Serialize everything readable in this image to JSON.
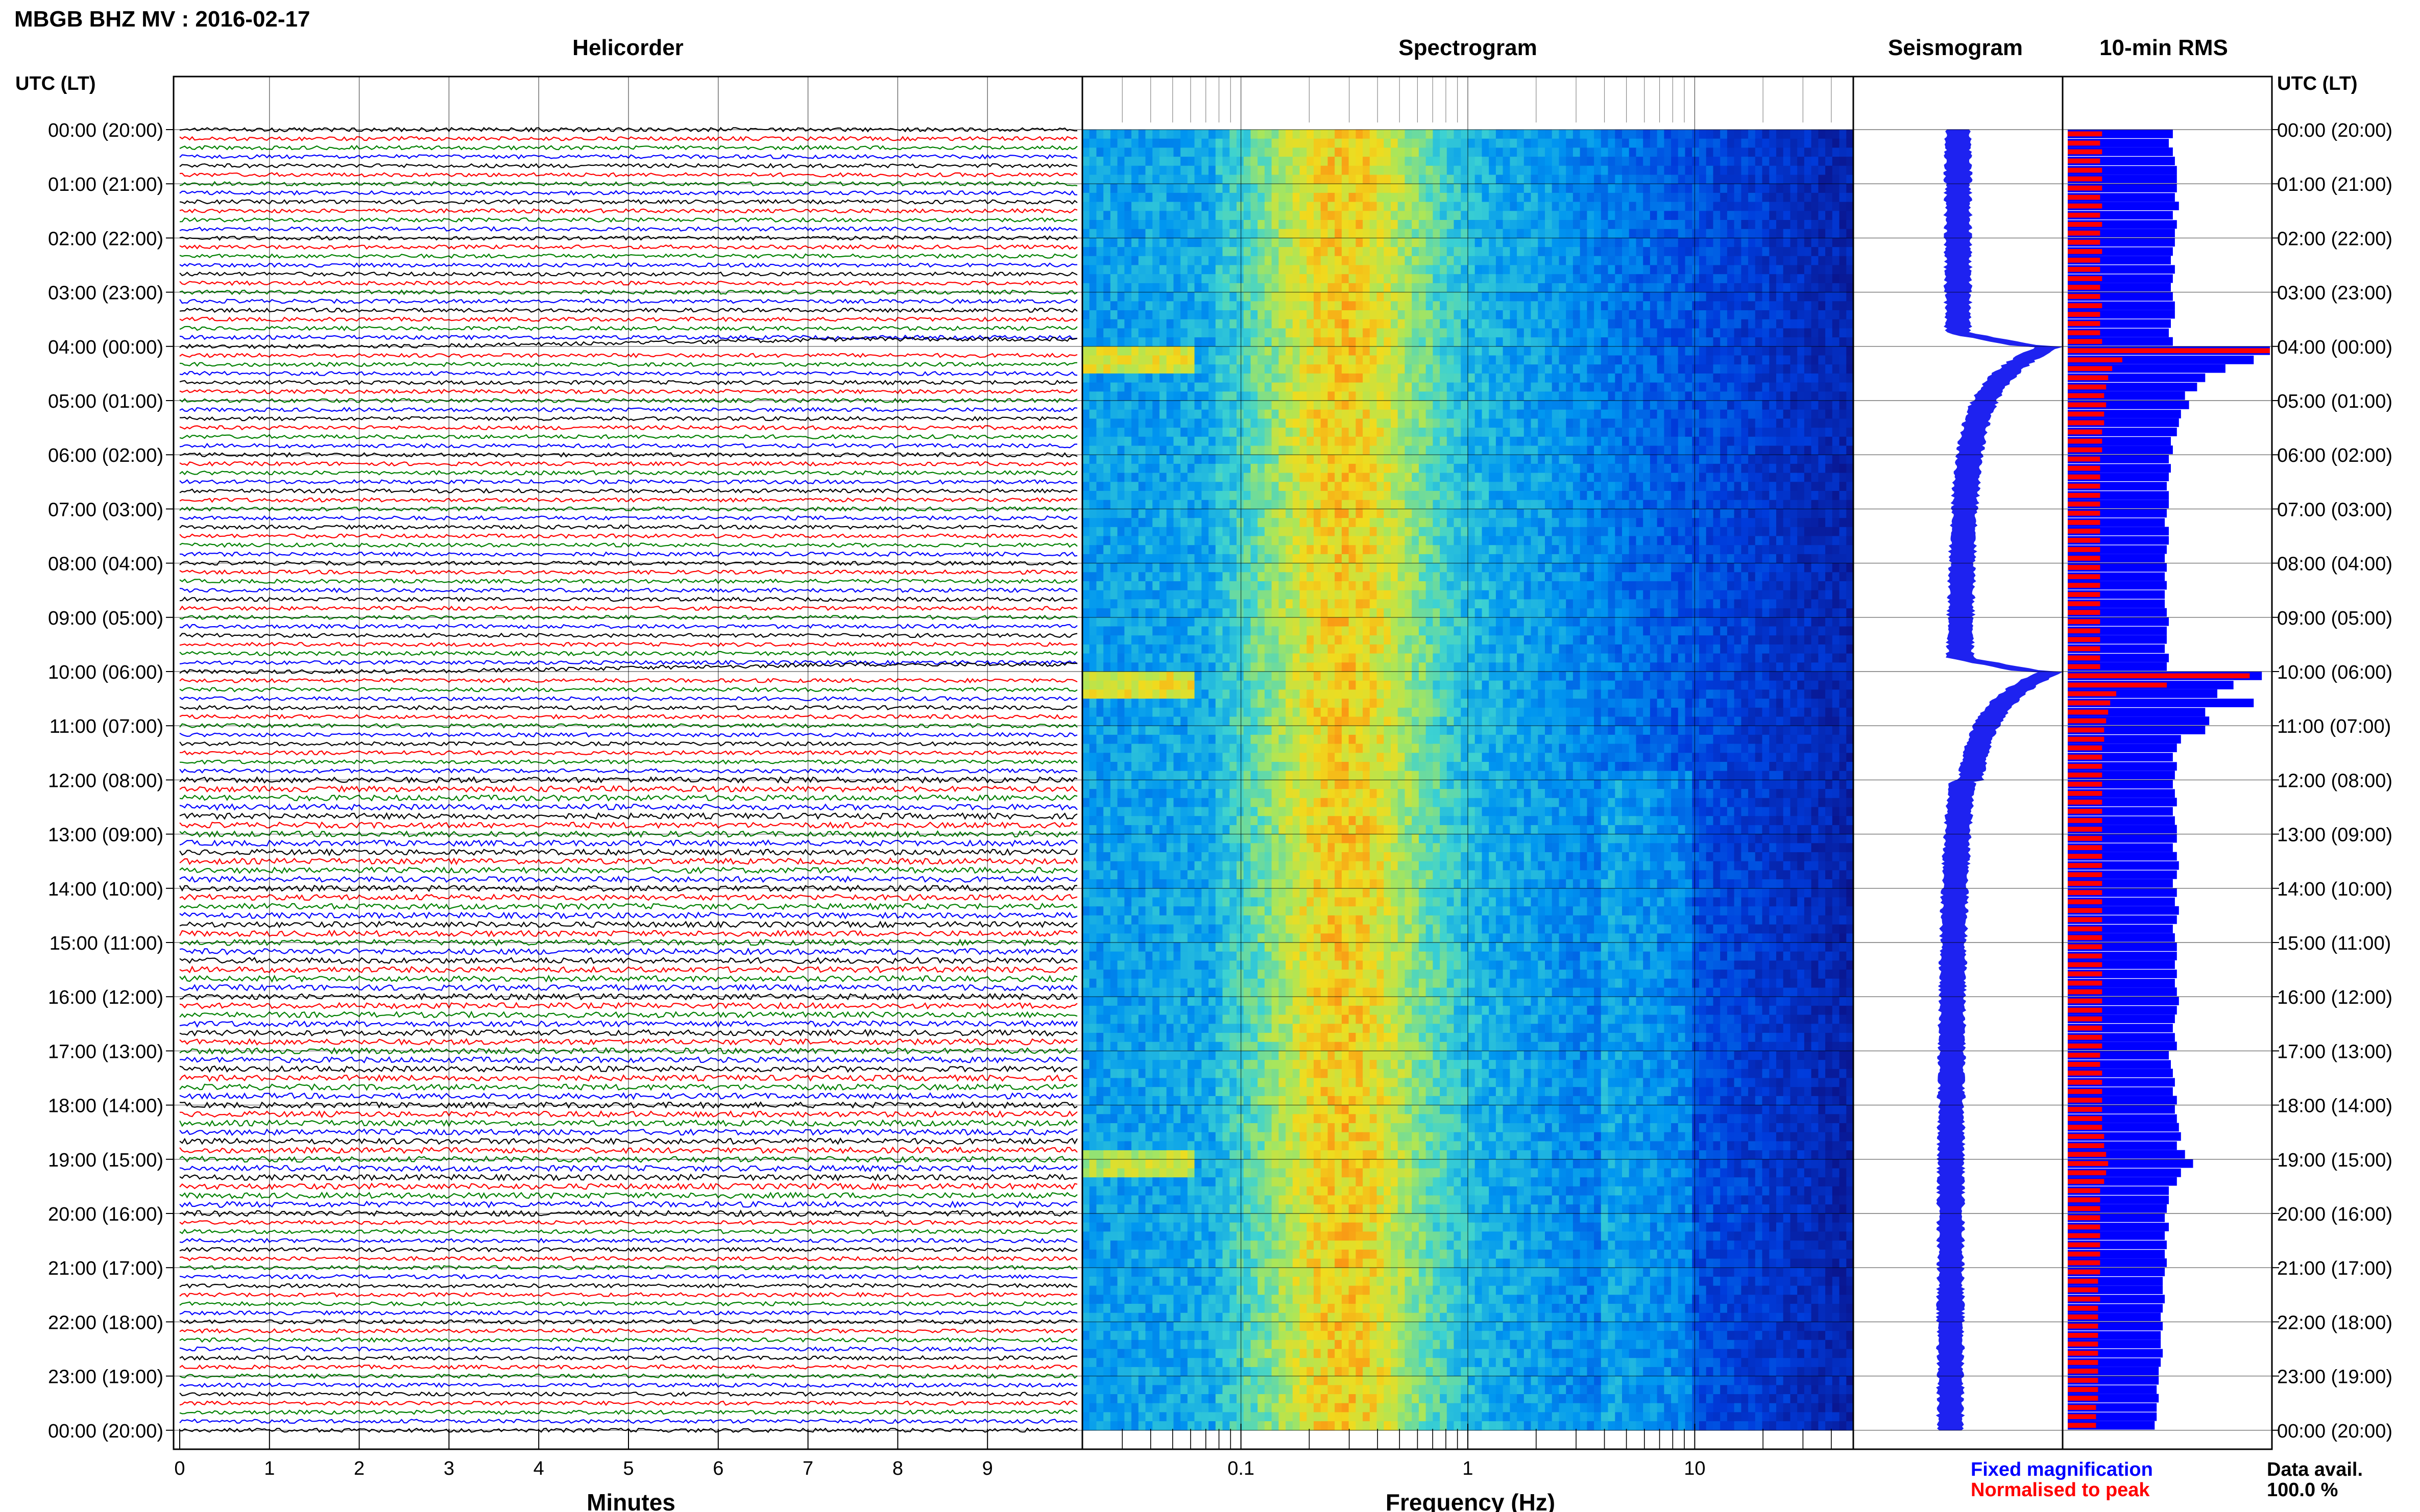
{
  "header": {
    "title": "MBGB BHZ MV : 2016-02-17",
    "utc_label_left": "UTC (LT)",
    "utc_label_right": "UTC (LT)"
  },
  "panels": {
    "helicorder": "Helicorder",
    "spectrogram": "Spectrogram",
    "seismogram": "Seismogram",
    "rms": "10-min RMS"
  },
  "axes": {
    "minutes_label": "Minutes",
    "frequency_label": "Frequency (Hz)",
    "minute_ticks": [
      "0",
      "1",
      "2",
      "3",
      "4",
      "5",
      "6",
      "7",
      "8",
      "9"
    ],
    "frequency_ticks": [
      "0.1",
      "1",
      "10"
    ]
  },
  "time_labels": [
    "00:00 (20:00)",
    "01:00 (21:00)",
    "02:00 (22:00)",
    "03:00 (23:00)",
    "04:00 (00:00)",
    "05:00 (01:00)",
    "06:00 (02:00)",
    "07:00 (03:00)",
    "08:00 (04:00)",
    "09:00 (05:00)",
    "10:00 (06:00)",
    "11:00 (07:00)",
    "12:00 (08:00)",
    "13:00 (09:00)",
    "14:00 (10:00)",
    "15:00 (11:00)",
    "16:00 (12:00)",
    "17:00 (13:00)",
    "18:00 (14:00)",
    "19:00 (15:00)",
    "20:00 (16:00)",
    "21:00 (17:00)",
    "22:00 (18:00)",
    "23:00 (19:00)",
    "00:00 (20:00)"
  ],
  "legend": {
    "fixed": "Fixed magnification",
    "normalised": "Normalised to peak",
    "fixed_color": "#0000ff",
    "normalised_color": "#ff0000"
  },
  "availability": {
    "label": "Data avail.",
    "value": "100.0 %"
  },
  "chart_data": {
    "type": "bar",
    "x_unit": "hour (UTC)",
    "x": [
      0.0,
      0.17,
      0.33,
      0.5,
      0.67,
      0.83,
      1.0,
      1.17,
      1.33,
      1.5,
      1.67,
      1.83,
      2.0,
      2.17,
      2.33,
      2.5,
      2.67,
      2.83,
      3.0,
      3.17,
      3.33,
      3.5,
      3.67,
      3.83,
      4.0,
      4.17,
      4.33,
      4.5,
      4.67,
      4.83,
      5.0,
      5.17,
      5.33,
      5.5,
      5.67,
      5.83,
      6.0,
      6.17,
      6.33,
      6.5,
      6.67,
      6.83,
      7.0,
      7.17,
      7.33,
      7.5,
      7.67,
      7.83,
      8.0,
      8.17,
      8.33,
      8.5,
      8.67,
      8.83,
      9.0,
      9.17,
      9.33,
      9.5,
      9.67,
      9.83,
      10.0,
      10.17,
      10.33,
      10.5,
      10.67,
      10.83,
      11.0,
      11.17,
      11.33,
      11.5,
      11.67,
      11.83,
      12.0,
      12.17,
      12.33,
      12.5,
      12.67,
      12.83,
      13.0,
      13.17,
      13.33,
      13.5,
      13.67,
      13.83,
      14.0,
      14.17,
      14.33,
      14.5,
      14.67,
      14.83,
      15.0,
      15.17,
      15.33,
      15.5,
      15.67,
      15.83,
      16.0,
      16.17,
      16.33,
      16.5,
      16.67,
      16.83,
      17.0,
      17.17,
      17.33,
      17.5,
      17.67,
      17.83,
      18.0,
      18.17,
      18.33,
      18.5,
      18.67,
      18.83,
      19.0,
      19.17,
      19.33,
      19.5,
      19.67,
      19.83,
      20.0,
      20.17,
      20.33,
      20.5,
      20.67,
      20.83,
      21.0,
      21.17,
      21.33,
      21.5,
      21.67,
      21.83,
      22.0,
      22.17,
      22.33,
      22.5,
      22.67,
      22.83,
      23.0,
      23.17,
      23.33,
      23.5,
      23.67,
      23.83
    ],
    "series": [
      {
        "name": "Fixed magnification",
        "color": "#0000ff",
        "values": [
          0.52,
          0.5,
          0.52,
          0.53,
          0.54,
          0.54,
          0.54,
          0.53,
          0.55,
          0.52,
          0.54,
          0.53,
          0.53,
          0.52,
          0.51,
          0.53,
          0.52,
          0.51,
          0.52,
          0.53,
          0.53,
          0.51,
          0.5,
          0.52,
          1.0,
          0.92,
          0.78,
          0.68,
          0.64,
          0.58,
          0.6,
          0.56,
          0.55,
          0.54,
          0.51,
          0.52,
          0.5,
          0.51,
          0.5,
          0.49,
          0.5,
          0.5,
          0.49,
          0.48,
          0.5,
          0.5,
          0.49,
          0.48,
          0.49,
          0.48,
          0.49,
          0.48,
          0.48,
          0.49,
          0.5,
          0.49,
          0.49,
          0.48,
          0.5,
          0.49,
          0.96,
          0.82,
          0.74,
          0.92,
          0.68,
          0.7,
          0.68,
          0.56,
          0.54,
          0.52,
          0.54,
          0.53,
          0.52,
          0.53,
          0.54,
          0.52,
          0.53,
          0.54,
          0.54,
          0.52,
          0.54,
          0.55,
          0.54,
          0.52,
          0.54,
          0.53,
          0.55,
          0.54,
          0.52,
          0.53,
          0.54,
          0.54,
          0.53,
          0.54,
          0.53,
          0.54,
          0.55,
          0.54,
          0.53,
          0.52,
          0.53,
          0.54,
          0.5,
          0.51,
          0.52,
          0.53,
          0.52,
          0.54,
          0.53,
          0.54,
          0.55,
          0.56,
          0.54,
          0.58,
          0.62,
          0.56,
          0.54,
          0.5,
          0.5,
          0.49,
          0.48,
          0.5,
          0.48,
          0.49,
          0.48,
          0.49,
          0.48,
          0.47,
          0.47,
          0.48,
          0.47,
          0.46,
          0.47,
          0.46,
          0.46,
          0.47,
          0.46,
          0.45,
          0.45,
          0.44,
          0.45,
          0.44,
          0.44,
          0.43
        ]
      },
      {
        "name": "Normalised to peak",
        "color": "#ff0000",
        "values": [
          0.17,
          0.16,
          0.17,
          0.16,
          0.17,
          0.17,
          0.17,
          0.16,
          0.17,
          0.16,
          0.17,
          0.16,
          0.16,
          0.17,
          0.16,
          0.16,
          0.17,
          0.16,
          0.16,
          0.17,
          0.16,
          0.16,
          0.16,
          0.17,
          1.0,
          0.27,
          0.22,
          0.2,
          0.19,
          0.18,
          0.19,
          0.18,
          0.18,
          0.17,
          0.17,
          0.17,
          0.16,
          0.16,
          0.16,
          0.16,
          0.16,
          0.16,
          0.16,
          0.16,
          0.16,
          0.16,
          0.16,
          0.16,
          0.16,
          0.16,
          0.16,
          0.16,
          0.16,
          0.16,
          0.16,
          0.16,
          0.16,
          0.16,
          0.16,
          0.16,
          0.9,
          0.49,
          0.24,
          0.21,
          0.2,
          0.19,
          0.18,
          0.18,
          0.17,
          0.17,
          0.17,
          0.17,
          0.17,
          0.17,
          0.17,
          0.17,
          0.17,
          0.17,
          0.17,
          0.17,
          0.17,
          0.17,
          0.17,
          0.17,
          0.17,
          0.17,
          0.17,
          0.17,
          0.17,
          0.17,
          0.17,
          0.17,
          0.17,
          0.17,
          0.17,
          0.17,
          0.17,
          0.17,
          0.17,
          0.17,
          0.17,
          0.17,
          0.16,
          0.16,
          0.17,
          0.17,
          0.17,
          0.17,
          0.17,
          0.17,
          0.17,
          0.18,
          0.18,
          0.19,
          0.2,
          0.19,
          0.18,
          0.16,
          0.16,
          0.16,
          0.16,
          0.16,
          0.16,
          0.16,
          0.16,
          0.16,
          0.16,
          0.15,
          0.15,
          0.16,
          0.15,
          0.15,
          0.15,
          0.15,
          0.15,
          0.15,
          0.15,
          0.15,
          0.15,
          0.15,
          0.15,
          0.14,
          0.14,
          0.14
        ]
      }
    ],
    "helicorder_line_colors": [
      "#000000",
      "#ff0000",
      "#008000",
      "#0000ff"
    ],
    "helicorder_lines_per_hour": 6,
    "helicorder_minutes_range": [
      0,
      10
    ],
    "helicorder_baseline_drift_events_hour": [
      4,
      10
    ],
    "spectrogram_frequency_range_hz": [
      0.02,
      50
    ],
    "spectrogram_xscale": "log",
    "seismogram_event_hours": [
      4,
      10
    ]
  }
}
